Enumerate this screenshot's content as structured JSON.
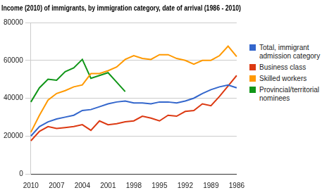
{
  "chart_data": {
    "type": "line",
    "title": "Income (2010) of immigrants, by immigration category, date of arrival (1986 - 2010)",
    "categories": [
      2010,
      null,
      null,
      2007,
      null,
      null,
      2004,
      null,
      null,
      2001,
      null,
      null,
      1998,
      null,
      null,
      1995,
      null,
      null,
      1992,
      null,
      null,
      1989,
      null,
      null,
      1986
    ],
    "series": [
      {
        "name": "Total, immigrant admission category",
        "color": "#3366cc",
        "values": [
          20000,
          25000,
          27500,
          29000,
          30000,
          31000,
          33500,
          34000,
          35500,
          37000,
          38000,
          38500,
          37500,
          37500,
          37000,
          38000,
          38000,
          37500,
          38500,
          40000,
          42500,
          44500,
          46000,
          47000,
          45500
        ]
      },
      {
        "name": "Business class",
        "color": "#dc3912",
        "values": [
          17500,
          22500,
          25000,
          24000,
          24500,
          25000,
          26000,
          23000,
          28000,
          26000,
          26500,
          27500,
          28000,
          30500,
          29500,
          28000,
          31000,
          30500,
          33000,
          33500,
          37000,
          36000,
          41000,
          46500,
          52000
        ]
      },
      {
        "name": "Skilled workers",
        "color": "#ff9900",
        "values": [
          22000,
          31000,
          39000,
          42500,
          44000,
          46000,
          47000,
          53000,
          53000,
          54500,
          56500,
          60500,
          62500,
          61000,
          60500,
          63000,
          63000,
          61000,
          60000,
          58000,
          60000,
          60000,
          62500,
          67500,
          62000
        ]
      },
      {
        "name": "Provincial/territorial nominees",
        "color": "#109618",
        "values": [
          38000,
          45500,
          50000,
          49500,
          54000,
          56000,
          60500,
          50500,
          52000,
          53500,
          48500,
          43500,
          null,
          null,
          null,
          null,
          null,
          null,
          null,
          null,
          null,
          null,
          null,
          null,
          null
        ]
      }
    ],
    "ylim": [
      0,
      80000
    ],
    "yticks": [
      0,
      20000,
      40000,
      60000,
      80000
    ],
    "grid": true,
    "legend": "right"
  }
}
